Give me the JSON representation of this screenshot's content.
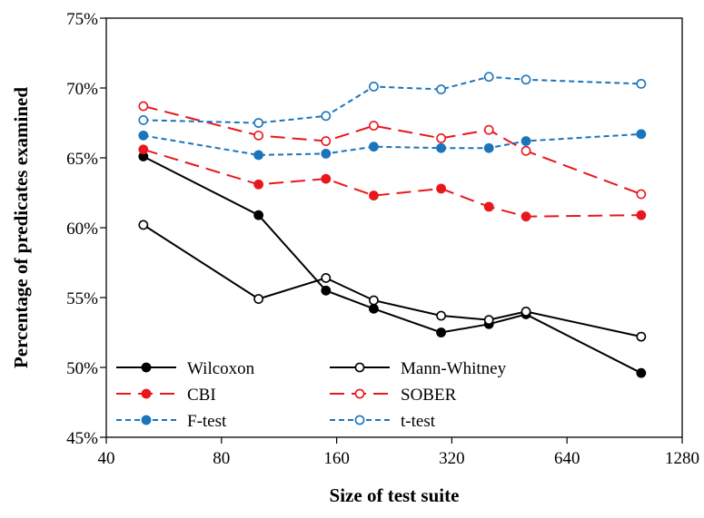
{
  "chart_data": {
    "type": "line",
    "title": "",
    "xlabel": "Size of test suite",
    "ylabel": "Percentage of predicates examined",
    "x_scale": "log2",
    "xlim": [
      40,
      1280
    ],
    "ylim": [
      45,
      75
    ],
    "x_ticks": [
      40,
      80,
      160,
      320,
      640,
      1280
    ],
    "x_tick_labels": [
      "40",
      "80",
      "160",
      "320",
      "640",
      "1280"
    ],
    "y_ticks": [
      45,
      50,
      55,
      60,
      65,
      70,
      75
    ],
    "y_tick_labels": [
      "45%",
      "50%",
      "55%",
      "60%",
      "65%",
      "70%",
      "75%"
    ],
    "grid": false,
    "legend_position": "bottom-left, inside plot",
    "x": [
      50,
      100,
      150,
      200,
      300,
      400,
      500,
      1000
    ],
    "series": [
      {
        "name": "Wilcoxon",
        "color": "#000000",
        "dash": "solid",
        "marker": "filled",
        "values": [
          65.1,
          60.9,
          55.5,
          54.2,
          52.5,
          53.1,
          53.8,
          49.6
        ]
      },
      {
        "name": "Mann-Whitney",
        "color": "#000000",
        "dash": "solid",
        "marker": "open",
        "values": [
          60.2,
          54.9,
          56.4,
          54.8,
          53.7,
          53.4,
          54.0,
          52.2
        ]
      },
      {
        "name": "CBI",
        "color": "#e8171c",
        "dash": "long-dash",
        "marker": "filled",
        "values": [
          65.6,
          63.1,
          63.5,
          62.3,
          62.8,
          61.5,
          60.8,
          60.9
        ]
      },
      {
        "name": "SOBER",
        "color": "#e8171c",
        "dash": "long-dash",
        "marker": "open",
        "values": [
          68.7,
          66.6,
          66.2,
          67.3,
          66.4,
          67.0,
          65.5,
          62.4
        ]
      },
      {
        "name": "F-test",
        "color": "#1a75bc",
        "dash": "short-dash",
        "marker": "filled",
        "values": [
          66.6,
          65.2,
          65.3,
          65.8,
          65.7,
          65.7,
          66.2,
          66.7
        ]
      },
      {
        "name": "t-test",
        "color": "#1a75bc",
        "dash": "short-dash",
        "marker": "open",
        "values": [
          67.7,
          67.5,
          68.0,
          70.1,
          69.9,
          70.8,
          70.6,
          70.3
        ]
      }
    ]
  }
}
